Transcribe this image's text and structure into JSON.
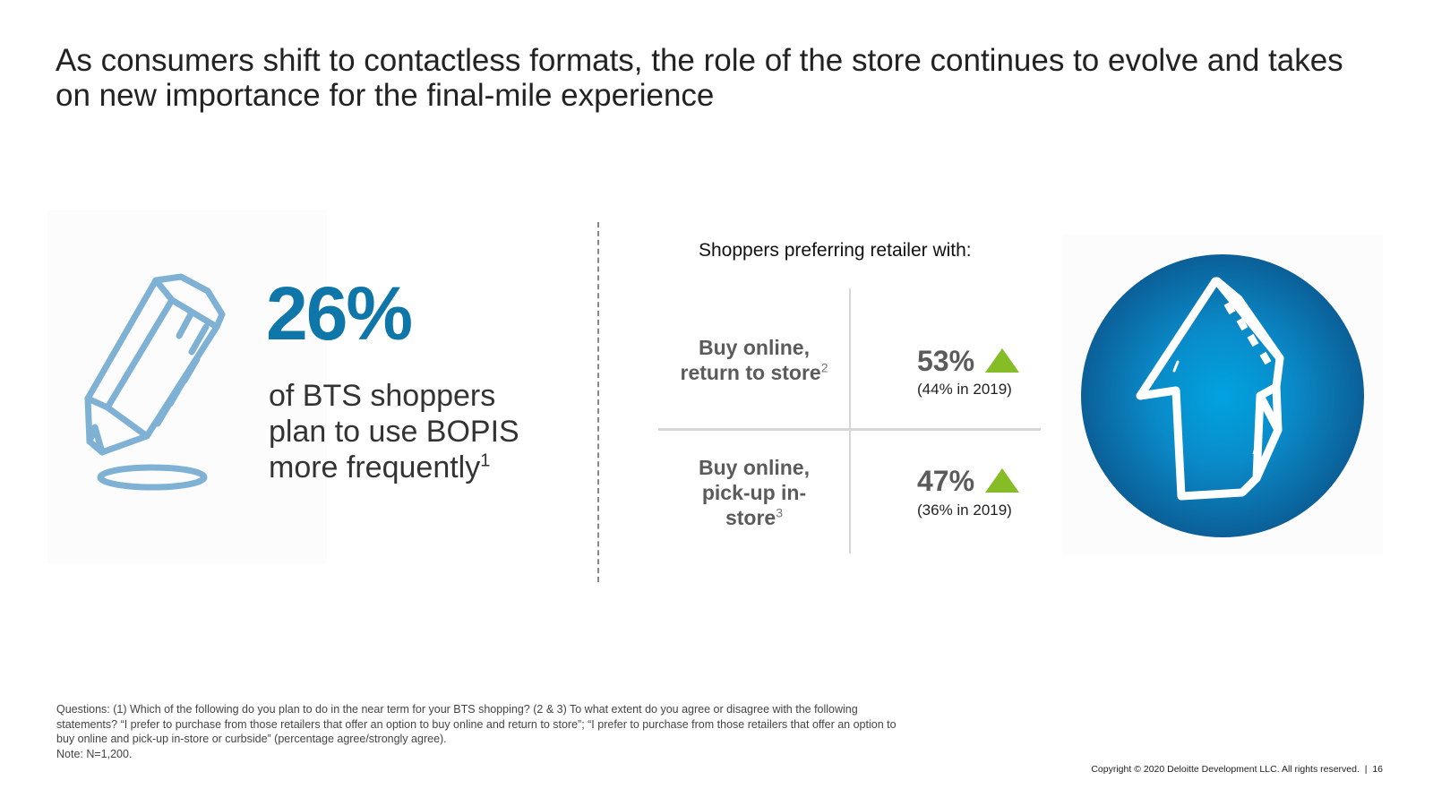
{
  "title": "As consumers shift to contactless formats, the role of the store continues to evolve and takes on new importance for the final-mile experience",
  "left": {
    "big_stat": "26%",
    "stat_text": "of BTS shoppers plan to use BOPIS more frequently",
    "stat_footnote": "1",
    "icon": "pencil-icon",
    "icon_color": "#7eb1d4",
    "stat_color": "#0e76a8"
  },
  "right": {
    "heading": "Shoppers preferring retailer with:",
    "rows": [
      {
        "label_line1": "Buy online,",
        "label_line2": "return to store",
        "footnote": "2",
        "value": "53%",
        "trend": "up",
        "previous": "(44% in 2019)"
      },
      {
        "label_line1": "Buy online,",
        "label_line2": "pick-up in-",
        "label_line3": "store",
        "footnote": "3",
        "value": "47%",
        "trend": "up",
        "previous": "(36% in 2019)"
      }
    ],
    "trend_color": "#86bc25",
    "icon": "up-arrow-circle-icon"
  },
  "footnote": {
    "questions": "Questions: (1) Which of the following do you plan to do in the near term for your BTS shopping? (2 & 3) To what extent do you agree or disagree with the following statements? “I prefer to purchase from those retailers that offer an option to buy online and return to store”; “I prefer to purchase from those retailers that offer an option to buy online and pick-up in-store or curbside” (percentage agree/strongly agree).",
    "note": "Note: N=1,200."
  },
  "copyright": "Copyright © 2020 Deloitte Development LLC. All rights reserved.",
  "page_number": "16"
}
